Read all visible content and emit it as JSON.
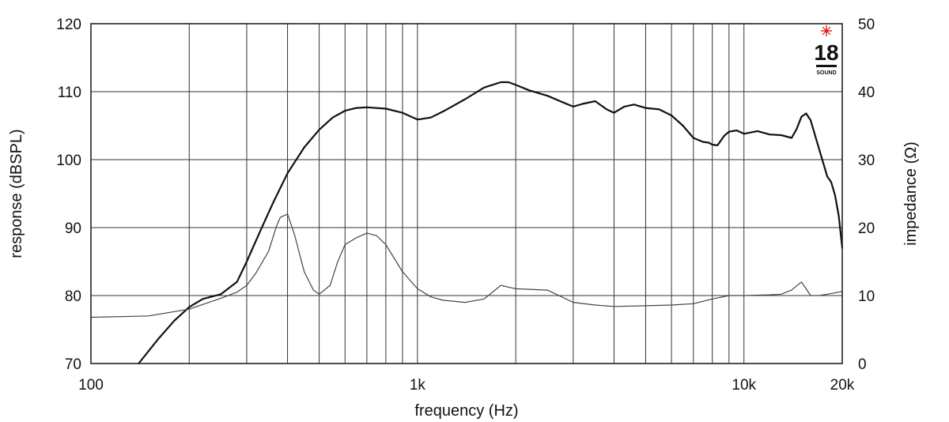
{
  "chart_data": {
    "type": "line",
    "xlabel": "frequency (Hz)",
    "ylabel": "response (dBSPL)",
    "y2label": "impedance (Ω)",
    "xscale": "log",
    "xlim": [
      100,
      20000
    ],
    "ylim": [
      70,
      120
    ],
    "y2lim": [
      0,
      50
    ],
    "grid": true,
    "x_ticks": [
      {
        "value": 100,
        "label": "100"
      },
      {
        "value": 1000,
        "label": "1k"
      },
      {
        "value": 10000,
        "label": "10k"
      },
      {
        "value": 20000,
        "label": "20k"
      }
    ],
    "y_ticks": [
      70,
      80,
      90,
      100,
      110,
      120
    ],
    "y2_ticks": [
      0,
      10,
      20,
      30,
      40,
      50
    ],
    "logo": {
      "text": "18",
      "subtext": "SOUND"
    },
    "series": [
      {
        "axis": "left",
        "color": "#111111",
        "x": [
          140,
          160,
          180,
          200,
          220,
          250,
          280,
          300,
          330,
          360,
          400,
          450,
          500,
          550,
          600,
          650,
          700,
          800,
          900,
          1000,
          1100,
          1200,
          1400,
          1600,
          1800,
          1900,
          2000,
          2200,
          2500,
          2800,
          3000,
          3200,
          3500,
          3800,
          4000,
          4300,
          4600,
          5000,
          5500,
          6000,
          6500,
          7000,
          7500,
          7800,
          8000,
          8300,
          8700,
          9000,
          9500,
          10000,
          10500,
          11000,
          12000,
          13000,
          14000,
          14500,
          15000,
          15500,
          16000,
          17000,
          18000,
          18500,
          19000,
          19500,
          20000
        ],
        "values": [
          70.0,
          73.5,
          76.3,
          78.3,
          79.5,
          80.2,
          82.0,
          85.0,
          89.5,
          93.5,
          98.0,
          101.8,
          104.4,
          106.2,
          107.2,
          107.6,
          107.7,
          107.5,
          106.9,
          105.9,
          106.2,
          107.1,
          108.9,
          110.6,
          111.4,
          111.4,
          111.0,
          110.2,
          109.4,
          108.4,
          107.8,
          108.2,
          108.6,
          107.4,
          106.9,
          107.8,
          108.1,
          107.6,
          107.4,
          106.5,
          105.0,
          103.2,
          102.6,
          102.5,
          102.2,
          102.1,
          103.5,
          104.1,
          104.3,
          103.8,
          104.0,
          104.2,
          103.7,
          103.6,
          103.2,
          104.5,
          106.3,
          106.8,
          105.8,
          101.5,
          97.5,
          96.7,
          94.8,
          91.8,
          87.0
        ]
      },
      {
        "axis": "right",
        "color": "#444444",
        "x": [
          100,
          150,
          200,
          250,
          280,
          300,
          320,
          350,
          370,
          380,
          400,
          420,
          450,
          480,
          500,
          540,
          570,
          600,
          650,
          700,
          750,
          800,
          900,
          1000,
          1100,
          1200,
          1400,
          1600,
          1800,
          2000,
          2500,
          3000,
          3500,
          4000,
          5000,
          6000,
          7000,
          8000,
          9000,
          10000,
          12000,
          13000,
          14000,
          15000,
          15500,
          16000,
          17000,
          18000,
          20000
        ],
        "values": [
          6.8,
          7.0,
          8.0,
          9.6,
          10.5,
          11.5,
          13.3,
          16.5,
          20.2,
          21.5,
          22.0,
          19.0,
          13.5,
          10.8,
          10.2,
          11.5,
          15.0,
          17.5,
          18.5,
          19.2,
          18.8,
          17.5,
          13.5,
          11.0,
          9.8,
          9.3,
          9.0,
          9.5,
          11.5,
          11.0,
          10.8,
          9.0,
          8.6,
          8.4,
          8.5,
          8.6,
          8.8,
          9.5,
          10.0,
          10.0,
          10.1,
          10.2,
          10.8,
          12.0,
          11.0,
          10.0,
          10.0,
          10.2,
          10.6
        ]
      }
    ]
  }
}
